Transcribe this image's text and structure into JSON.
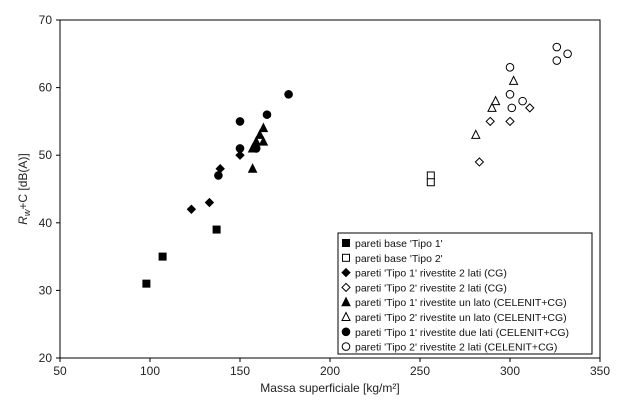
{
  "chart_data": {
    "type": "scatter",
    "title": "",
    "xlabel": "Massa superficiale [kg/m²]",
    "ylabel": "Rw+C [dB(A)]",
    "ylabel_main": "R",
    "ylabel_sub": "w",
    "ylabel_rest": "+C [dB(A)]",
    "xlim": [
      50,
      350
    ],
    "ylim": [
      20,
      70
    ],
    "xticks": [
      50,
      100,
      150,
      200,
      250,
      300,
      350
    ],
    "yticks": [
      20,
      30,
      40,
      50,
      60,
      70
    ],
    "grid": false,
    "legend_position": "bottom-right",
    "series": [
      {
        "name": "pareti base 'Tipo 1'",
        "marker": "square",
        "filled": true,
        "points": [
          [
            98,
            31
          ],
          [
            107,
            35
          ],
          [
            137,
            39
          ]
        ]
      },
      {
        "name": "pareti base 'Tipo 2'",
        "marker": "square",
        "filled": false,
        "points": [
          [
            256,
            47
          ],
          [
            256,
            46
          ]
        ]
      },
      {
        "name": "pareti 'Tipo 1' rivestite 2 lati (CG)",
        "marker": "diamond",
        "filled": true,
        "points": [
          [
            123,
            42
          ],
          [
            133,
            43
          ],
          [
            139,
            48
          ],
          [
            150,
            50
          ]
        ]
      },
      {
        "name": "pareti 'Tipo 2' rivestite 2 lati (CG)",
        "marker": "diamond",
        "filled": false,
        "points": [
          [
            283,
            49
          ],
          [
            289,
            55
          ],
          [
            300,
            55
          ],
          [
            311,
            57
          ]
        ]
      },
      {
        "name": "pareti 'Tipo 1' rivestite un lato (CELENIT+CG)",
        "marker": "triangle",
        "filled": true,
        "points": [
          [
            157,
            48
          ],
          [
            157,
            51
          ],
          [
            159,
            52
          ],
          [
            161,
            53
          ],
          [
            163,
            54
          ],
          [
            163,
            52
          ]
        ]
      },
      {
        "name": "pareti 'Tipo 2' rivestite un lato (CELENIT+CG)",
        "marker": "triangle",
        "filled": false,
        "points": [
          [
            281,
            53
          ],
          [
            290,
            57
          ],
          [
            292,
            58
          ],
          [
            302,
            61
          ]
        ]
      },
      {
        "name": "pareti 'Tipo 1' rivestite due lati (CELENIT+CG)",
        "marker": "circle",
        "filled": true,
        "points": [
          [
            138,
            47
          ],
          [
            150,
            55
          ],
          [
            150,
            51
          ],
          [
            159,
            51
          ],
          [
            165,
            56
          ],
          [
            177,
            59
          ]
        ]
      },
      {
        "name": "pareti 'Tipo 2' rivestite 2 lati (CELENIT+CG)",
        "marker": "circle",
        "filled": false,
        "points": [
          [
            300,
            63
          ],
          [
            300,
            59
          ],
          [
            301,
            57
          ],
          [
            307,
            58
          ],
          [
            326,
            66
          ],
          [
            326,
            64
          ],
          [
            332,
            65
          ]
        ]
      }
    ]
  }
}
